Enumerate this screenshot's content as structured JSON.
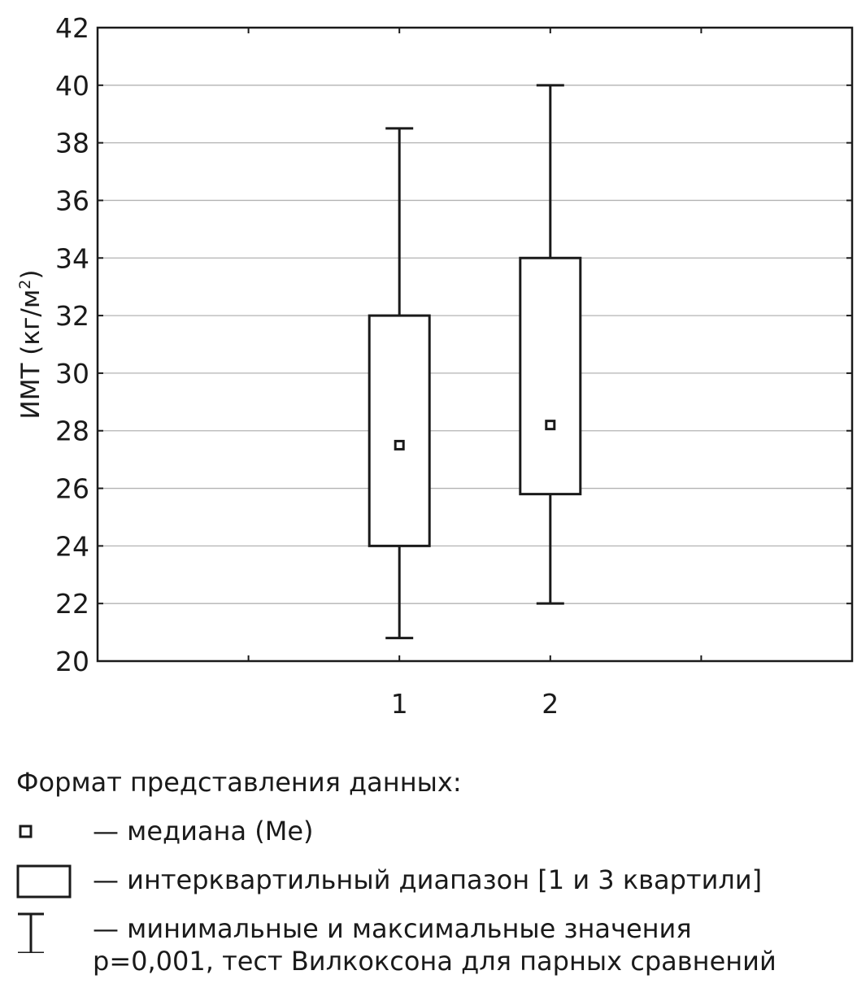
{
  "chart_data": {
    "type": "boxplot",
    "ylabel_main": "ИМТ (кг/м",
    "ylabel_sup": "2",
    "ylabel_close": ")",
    "ylim": [
      20,
      42
    ],
    "yticks": [
      "42",
      "40",
      "38",
      "36",
      "34",
      "32",
      "30",
      "28",
      "26",
      "24",
      "22",
      "20"
    ],
    "ytick_values": [
      42,
      40,
      38,
      36,
      34,
      32,
      30,
      28,
      26,
      24,
      22,
      20
    ],
    "grid": true,
    "categories": [
      "1",
      "2"
    ],
    "boxes": [
      {
        "category": "1",
        "min": 20.8,
        "q1": 24.0,
        "median": 27.5,
        "q3": 32.0,
        "max": 38.5
      },
      {
        "category": "2",
        "min": 22.0,
        "q1": 25.8,
        "median": 28.2,
        "q3": 34.0,
        "max": 40.0
      }
    ]
  },
  "legend": {
    "heading": "Формат представления данных:",
    "median_text": "— медиана (Me)",
    "iqr_text": "— интерквартильный диапазон [1 и 3 квартили]",
    "range_text": "— минимальные и максимальные значения",
    "test_note": "p=0,001, тест Вилкоксона для парных сравнений"
  }
}
